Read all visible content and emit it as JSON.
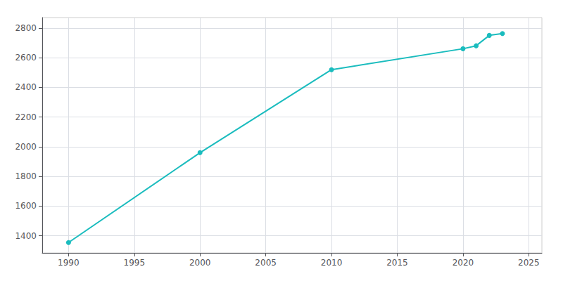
{
  "chart_data": {
    "type": "line",
    "x": [
      1990,
      2000,
      2010,
      2020,
      2021,
      2022,
      2023
    ],
    "values": [
      1355,
      1960,
      2519,
      2660,
      2680,
      2750,
      2762
    ],
    "color": "#1ABCBE",
    "marker": "circle",
    "xlim": [
      1988,
      2026
    ],
    "ylim": [
      1285,
      2870
    ],
    "xticks": [
      1990,
      1995,
      2000,
      2005,
      2010,
      2015,
      2020,
      2025
    ],
    "yticks": [
      1400,
      1600,
      1800,
      2000,
      2200,
      2400,
      2600,
      2800
    ],
    "grid": true
  }
}
